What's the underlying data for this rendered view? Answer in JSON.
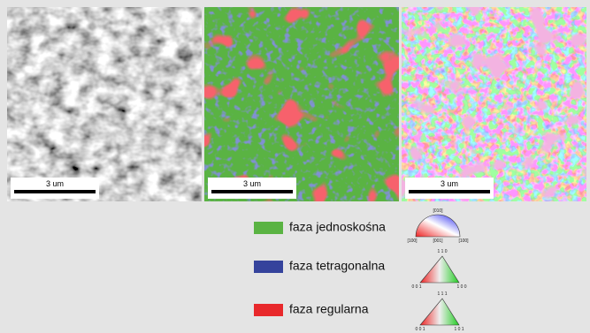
{
  "panels": [
    {
      "scale_label": "3 um"
    },
    {
      "scale_label": "3 um"
    },
    {
      "scale_label": "3 um"
    }
  ],
  "legend": [
    {
      "label": "faza jednoskośna"
    },
    {
      "label": "faza tetragonalna"
    },
    {
      "label": "faza regularna"
    }
  ],
  "pole_figures": [
    {
      "labels": [
        "[010]",
        "[100]",
        "[001]",
        "[100]"
      ]
    },
    {
      "labels": [
        "1 1 0",
        "0 0 1",
        "1 0 0"
      ]
    },
    {
      "labels": [
        "1 1 1",
        "0 0 1",
        "1 0 1"
      ]
    }
  ]
}
